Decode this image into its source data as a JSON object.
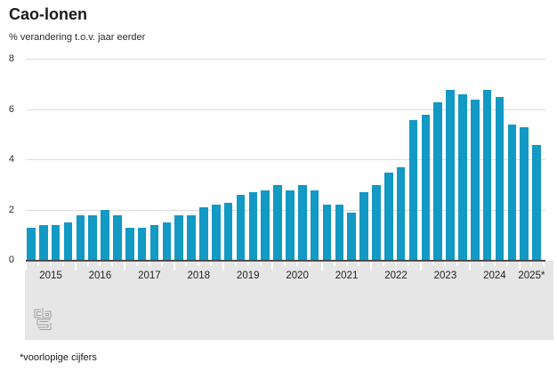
{
  "header": {
    "title": "Cao-lonen",
    "subtitle": "% verandering t.o.v. jaar eerder"
  },
  "footnote": "*voorlopige cijfers",
  "logo": {
    "label": "cbs",
    "text_top": "cb",
    "text_bottom": "s"
  },
  "colors": {
    "bar": "#1299c4",
    "gridline": "#dcdcdc",
    "baseline": "#4d4d4d",
    "axis_band": "#e6e6e6",
    "tick": "#ffffff",
    "text": "#1a1a1a"
  },
  "chart_data": {
    "type": "bar",
    "title": "Cao-lonen",
    "ylabel": "% verandering t.o.v. jaar eerder",
    "xlabel": "",
    "ylim": [
      0,
      8
    ],
    "yticks": [
      0,
      2,
      4,
      6,
      8
    ],
    "grid": true,
    "legend": false,
    "unit": "% change vs year earlier, per quarter",
    "years": [
      {
        "label": "2015",
        "quarters": 4
      },
      {
        "label": "2016",
        "quarters": 4
      },
      {
        "label": "2017",
        "quarters": 4
      },
      {
        "label": "2018",
        "quarters": 4
      },
      {
        "label": "2019",
        "quarters": 4
      },
      {
        "label": "2020",
        "quarters": 4
      },
      {
        "label": "2021",
        "quarters": 4
      },
      {
        "label": "2022",
        "quarters": 4
      },
      {
        "label": "2023",
        "quarters": 4
      },
      {
        "label": "2024",
        "quarters": 4
      },
      {
        "label": "2025*",
        "quarters": 2
      }
    ],
    "values": [
      1.3,
      1.4,
      1.4,
      1.5,
      1.8,
      1.8,
      2.0,
      1.8,
      1.3,
      1.3,
      1.4,
      1.5,
      1.8,
      1.8,
      2.1,
      2.2,
      2.3,
      2.6,
      2.7,
      2.8,
      3.0,
      2.8,
      3.0,
      2.8,
      2.2,
      2.2,
      1.9,
      2.7,
      3.0,
      3.5,
      3.7,
      5.6,
      5.8,
      6.3,
      6.8,
      6.6,
      6.4,
      6.8,
      6.5,
      5.4,
      5.3,
      4.6
    ]
  }
}
